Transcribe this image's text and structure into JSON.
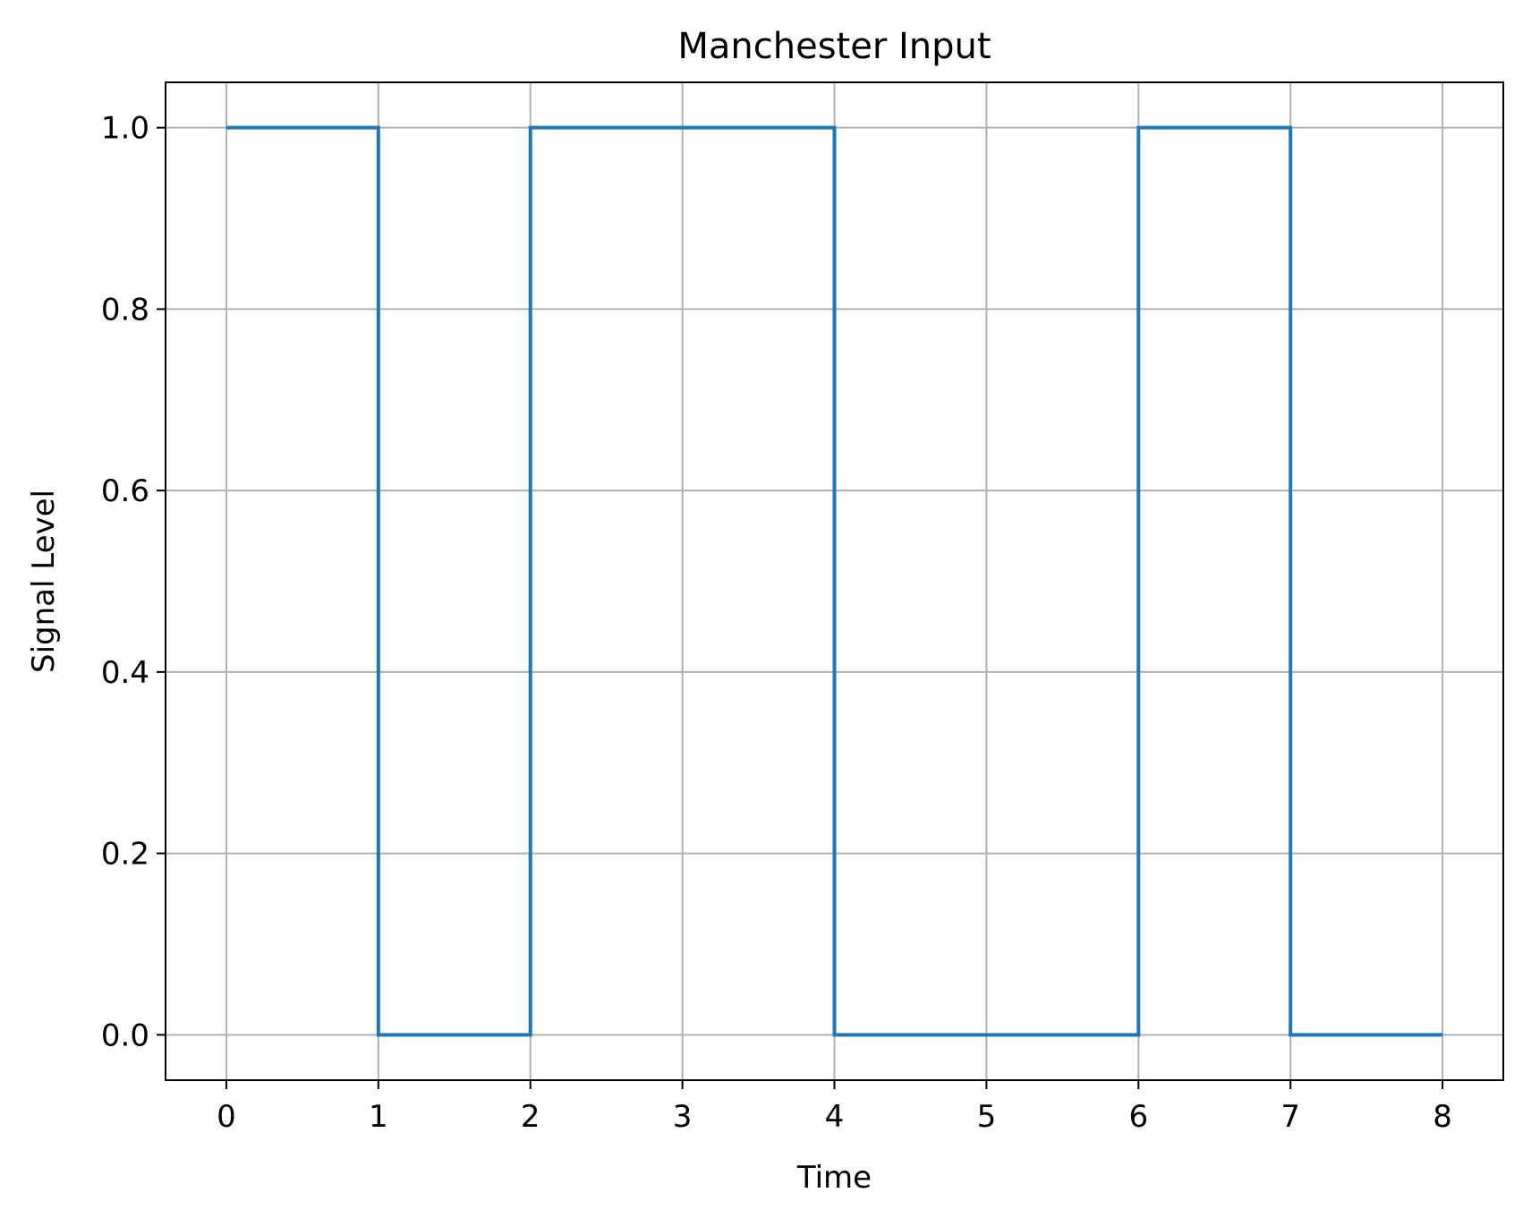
{
  "chart_data": {
    "type": "line",
    "step": "post",
    "title": "Manchester Input",
    "xlabel": "Time",
    "ylabel": "Signal Level",
    "xlim": [
      -0.4,
      8.4
    ],
    "ylim": [
      -0.05,
      1.05
    ],
    "xticks": [
      0,
      1,
      2,
      3,
      4,
      5,
      6,
      7,
      8
    ],
    "xtick_labels": [
      "0",
      "1",
      "2",
      "3",
      "4",
      "5",
      "6",
      "7",
      "8"
    ],
    "yticks": [
      0.0,
      0.2,
      0.4,
      0.6,
      0.8,
      1.0
    ],
    "ytick_labels": [
      "0.0",
      "0.2",
      "0.4",
      "0.6",
      "0.8",
      "1.0"
    ],
    "grid": true,
    "legend": "none",
    "series": [
      {
        "color": "#1f77b4",
        "x": [
          0,
          1,
          2,
          3,
          4,
          5,
          6,
          7,
          8
        ],
        "y": [
          1,
          0,
          1,
          1,
          0,
          0,
          1,
          0,
          0
        ]
      }
    ]
  }
}
